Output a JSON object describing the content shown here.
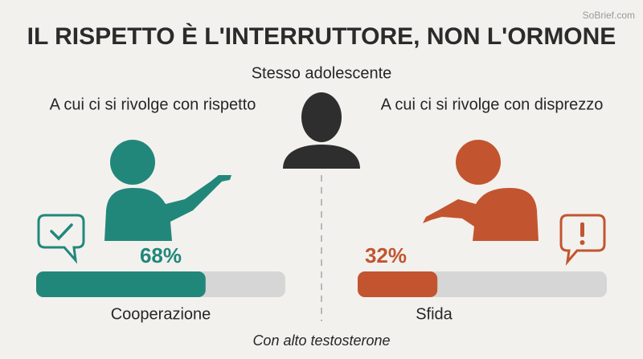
{
  "watermark": "SoBrief.com",
  "title": "IL RISPETTO È L'INTERRUTTORE, NON L'ORMONE",
  "center_label": "Stesso adolescente",
  "footer": "Con alto testosterone",
  "scale": [
    0,
    100
  ],
  "left": {
    "heading": "A cui ci si rivolge con rispetto",
    "value": 68,
    "value_label": "68%",
    "color": "#22877b",
    "outcome": "Cooperazione"
  },
  "right": {
    "heading": "A cui ci si rivolge con disprezzo",
    "value": 32,
    "value_label": "32%",
    "color": "#c2552f",
    "outcome": "Sfida"
  }
}
